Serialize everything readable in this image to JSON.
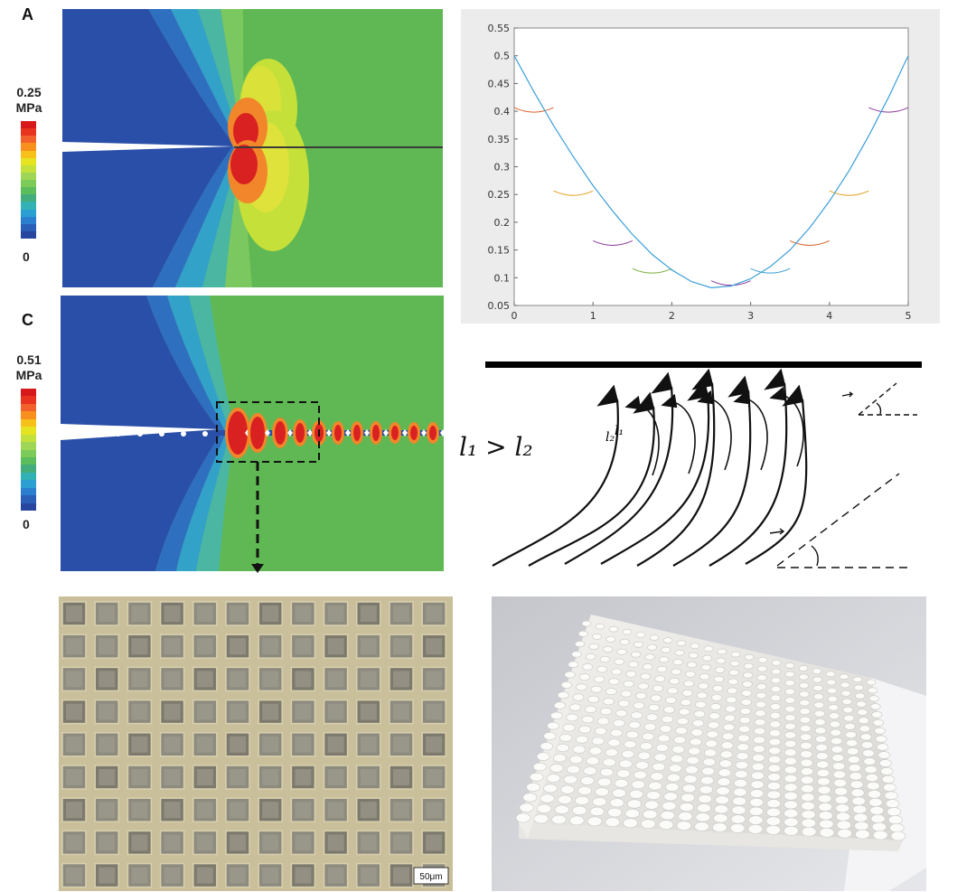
{
  "panel_a": {
    "label": "A",
    "colorbar_max": "0.25",
    "colorbar_unit": "MPa",
    "colorbar_min": "0"
  },
  "panel_c": {
    "label": "C",
    "colorbar_max": "0.51",
    "colorbar_unit": "MPa",
    "colorbar_min": "0"
  },
  "colorbar_colors": [
    "#d7191c",
    "#e8331e",
    "#f2602b",
    "#f7901c",
    "#f6c21a",
    "#e6e320",
    "#c4e03a",
    "#9fd655",
    "#7ccb59",
    "#5cbd5c",
    "#43ad7b",
    "#33b2b5",
    "#2b9fd2",
    "#2a7fcf",
    "#2a5fb8",
    "#26469f"
  ],
  "fem_colors": {
    "blue": "#2a4fa8",
    "green": "#5fb853",
    "cyan": "#3fb8c0",
    "yellow": "#dfe23a",
    "red": "#d92121",
    "orange": "#ee6a24"
  },
  "hand_drawing": {
    "inequality": "l₁ > l₂",
    "label_l1": "l₁",
    "label_l2": "l₂"
  },
  "micrograph": {
    "scale_bar": "50μm",
    "grid_rows": 9,
    "grid_cols": 12
  },
  "chart_data": {
    "type": "line",
    "title": "",
    "xlabel": "",
    "ylabel": "",
    "xlim": [
      0,
      5
    ],
    "ylim": [
      0.05,
      0.55
    ],
    "xticks": [
      0,
      1,
      2,
      3,
      4,
      5
    ],
    "yticks": [
      0.05,
      0.1,
      0.15,
      0.2,
      0.25,
      0.3,
      0.35,
      0.4,
      0.45,
      0.5,
      0.55
    ],
    "series": [
      {
        "color": "#3b9fd8",
        "x": [
          0,
          0.25,
          0.5,
          0.75,
          1,
          1.25,
          1.5,
          1.75,
          2,
          2.25,
          2.5,
          2.75,
          3,
          3.25,
          3.5,
          3.75,
          4,
          4.25,
          4.5,
          4.75,
          5
        ],
        "y": [
          0.5,
          0.435,
          0.374,
          0.318,
          0.266,
          0.22,
          0.178,
          0.142,
          0.114,
          0.093,
          0.082,
          0.085,
          0.098,
          0.12,
          0.15,
          0.19,
          0.238,
          0.293,
          0.356,
          0.425,
          0.5
        ]
      }
    ],
    "tangent_arcs": [
      {
        "x0": 0.0,
        "x1": 0.5,
        "y": 0.4,
        "color": "#d9622b"
      },
      {
        "x0": 0.5,
        "x1": 1.0,
        "y": 0.25,
        "color": "#e0a020"
      },
      {
        "x0": 1.0,
        "x1": 1.5,
        "y": 0.16,
        "color": "#8b3a9a"
      },
      {
        "x0": 1.5,
        "x1": 2.0,
        "y": 0.11,
        "color": "#7cae3a"
      },
      {
        "x0": 2.5,
        "x1": 3.0,
        "y": 0.088,
        "color": "#8b3a9a"
      },
      {
        "x0": 3.0,
        "x1": 3.5,
        "y": 0.11,
        "color": "#3b9fd8"
      },
      {
        "x0": 3.5,
        "x1": 4.0,
        "y": 0.16,
        "color": "#d9622b"
      },
      {
        "x0": 4.0,
        "x1": 4.5,
        "y": 0.25,
        "color": "#e0a020"
      },
      {
        "x0": 4.5,
        "x1": 5.0,
        "y": 0.4,
        "color": "#8b3a9a"
      }
    ]
  }
}
